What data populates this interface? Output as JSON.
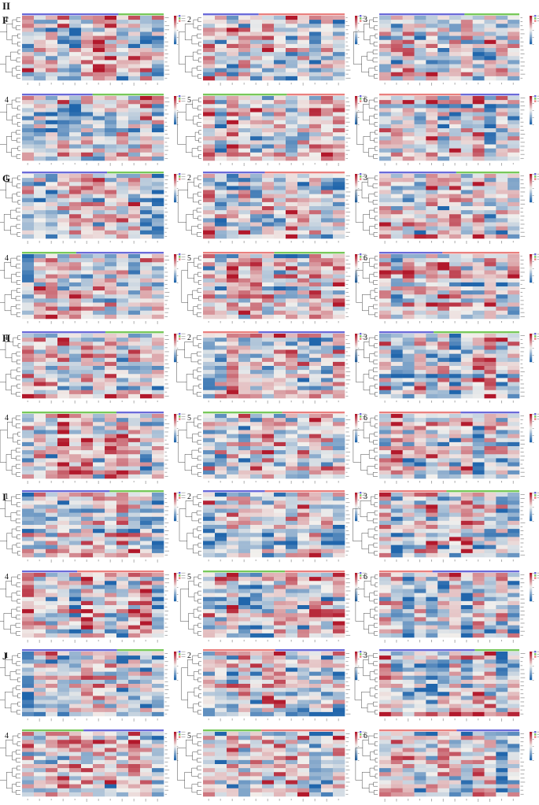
{
  "figure_label": "II",
  "sections": [
    {
      "label": "F",
      "panels": [
        "1",
        "2",
        "3",
        "4",
        "5",
        "6"
      ]
    },
    {
      "label": "G",
      "panels": [
        "1",
        "2",
        "3",
        "4",
        "5",
        "6"
      ]
    },
    {
      "label": "H",
      "panels": [
        "1",
        "2",
        "3",
        "4",
        "5",
        "6"
      ]
    },
    {
      "label": "I",
      "panels": [
        "1",
        "2",
        "3",
        "4",
        "5",
        "6"
      ]
    },
    {
      "label": "J",
      "panels": [
        "1",
        "2",
        "3",
        "4",
        "5",
        "6"
      ]
    }
  ],
  "colors": {
    "low": "#2166ac",
    "mid": "#f2f0ed",
    "high": "#b2182b",
    "group_blue": "#6a6ad8",
    "group_green": "#78c85a",
    "group_pink": "#e9807e"
  },
  "chart_data": {
    "type": "heatmap",
    "color_scale": [
      "#2166ac",
      "#f2f0ed",
      "#b2182b"
    ],
    "value_range": [
      -2,
      2
    ],
    "rows_per_panel": 16,
    "cols_per_panel": 12,
    "grid": false,
    "legend_placement": "right",
    "panel_grid": "5 sections x 6 panels",
    "annotation_bar": "top",
    "dendrogram": "left",
    "values_shown": "approximate, not printed",
    "panel_group_bars": [
      [
        "group_blue",
        "group_green"
      ],
      [
        "group_blue",
        "group_pink"
      ],
      [
        "group_blue",
        "group_green"
      ],
      [
        "group_blue",
        "group_green"
      ],
      [
        "group_green",
        "group_pink"
      ],
      [
        "group_pink",
        "group_blue"
      ],
      [
        "group_blue",
        "group_green"
      ],
      [
        "group_blue",
        "group_pink"
      ],
      [
        "group_blue",
        "group_green"
      ],
      [
        "group_green",
        "group_blue"
      ],
      [
        "group_pink",
        "group_green"
      ],
      [
        "group_blue",
        "group_pink"
      ],
      [
        "group_blue",
        "group_green"
      ],
      [
        "group_pink",
        "group_blue"
      ],
      [
        "group_blue",
        "group_green"
      ],
      [
        "group_green",
        "group_blue"
      ],
      [
        "group_green",
        "group_pink"
      ],
      [
        "group_pink",
        "group_blue"
      ],
      [
        "group_blue",
        "group_green"
      ],
      [
        "group_blue",
        "group_pink"
      ],
      [
        "group_pink",
        "group_green"
      ],
      [
        "group_blue",
        "group_pink"
      ],
      [
        "group_green",
        "group_pink"
      ],
      [
        "group_pink",
        "group_blue"
      ],
      [
        "group_blue",
        "group_green"
      ],
      [
        "group_pink",
        "group_blue"
      ],
      [
        "group_blue",
        "group_green"
      ],
      [
        "group_green",
        "group_blue"
      ],
      [
        "group_green",
        "group_pink"
      ],
      [
        "group_pink",
        "group_blue"
      ]
    ]
  }
}
